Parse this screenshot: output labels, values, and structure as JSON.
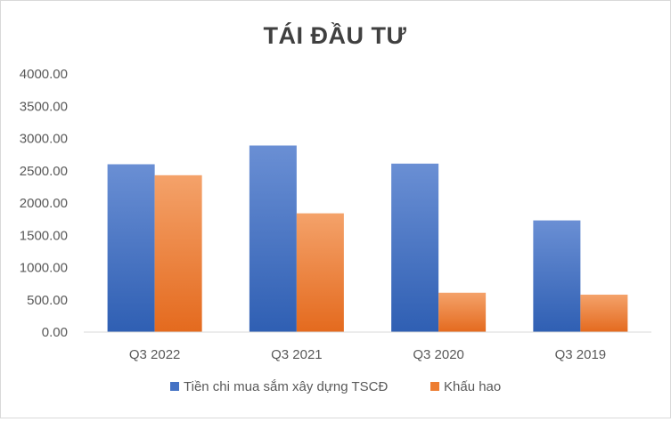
{
  "chart_data": {
    "type": "bar",
    "title": "TÁI ĐẦU TƯ",
    "xlabel": "",
    "ylabel": "",
    "categories": [
      "Q3 2022",
      "Q3 2021",
      "Q3 2020",
      "Q3 2019"
    ],
    "series": [
      {
        "name": "Tiền chi mua sắm xây dựng TSCĐ",
        "values": [
          2600,
          2890,
          2610,
          1730
        ],
        "color": "#4472c4"
      },
      {
        "name": "Khấu hao",
        "values": [
          2430,
          1840,
          610,
          580
        ],
        "color": "#ed7d31"
      }
    ],
    "ylim": [
      0,
      4000
    ],
    "yticks": [
      "0.00",
      "500.00",
      "1000.00",
      "1500.00",
      "2000.00",
      "2500.00",
      "3000.00",
      "3500.00",
      "4000.00"
    ],
    "grid": false,
    "legend_position": "bottom"
  }
}
